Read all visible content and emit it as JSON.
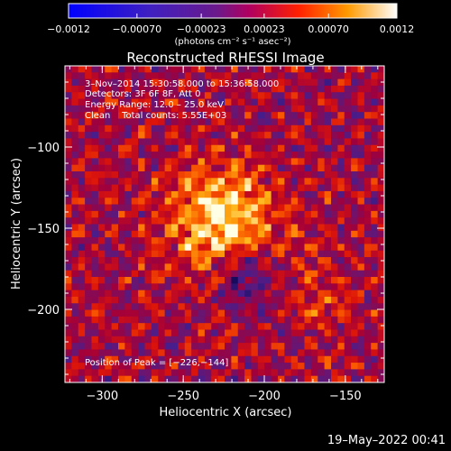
{
  "chart_data": {
    "type": "heatmap",
    "title": "Reconstructed RHESSI Image",
    "xlabel": "Heliocentric X (arcsec)",
    "ylabel": "Heliocentric Y (arcsec)",
    "xlim": [
      -323,
      -126
    ],
    "ylim": [
      -245,
      -50
    ],
    "x_ticks": [
      -300,
      -250,
      -200,
      -150
    ],
    "y_ticks": [
      -100,
      -150,
      -200
    ],
    "x_tick_labels": [
      "−300",
      "−250",
      "−200",
      "−150"
    ],
    "y_tick_labels": [
      "−100",
      "−150",
      "−200"
    ],
    "colorbar": {
      "min": -0.0012,
      "max": 0.0012,
      "tick_values": [
        -0.0012,
        -0.0007,
        -0.00023,
        0.00023,
        0.0007,
        0.0012
      ],
      "tick_labels": [
        "−0.0012",
        "−0.00070",
        "−0.00023",
        "0.00023",
        "0.00070",
        "0.0012"
      ],
      "unit": "(photons cm⁻² s⁻¹ asec⁻²)"
    },
    "peak": {
      "x": -226,
      "y": -144
    },
    "annotations": [
      "3–Nov–2014 15:30:58.000 to 15:36:58.000",
      "Detectors: 3F 6F 8F, Att 0",
      "Energy Range: 12.0 – 25.0 keV",
      "Clean    Total counts: 5.55E+03",
      "Position of Peak = [−226,−144]"
    ]
  },
  "footer": {
    "timestamp": "19–May–2022 00:41"
  }
}
